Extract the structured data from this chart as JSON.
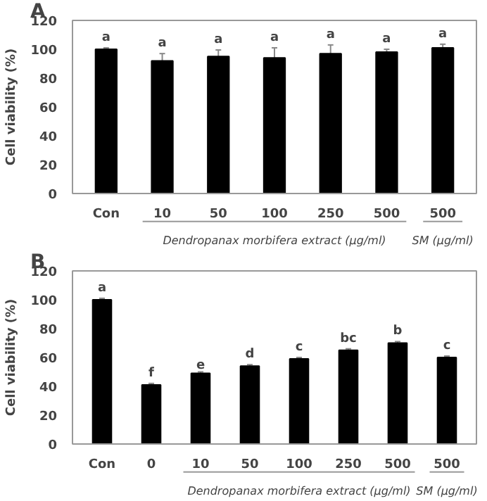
{
  "chart_data": [
    {
      "type": "bar",
      "title": "A",
      "ylabel": "Cell viability (%)",
      "categories": [
        "Con",
        "10",
        "50",
        "100",
        "250",
        "500",
        "500"
      ],
      "values": [
        100,
        92,
        95,
        94,
        97,
        98,
        101
      ],
      "errors": [
        1,
        5,
        4.5,
        7,
        6,
        2,
        2.5
      ],
      "value_labels": [
        "a",
        "a",
        "a",
        "a",
        "a",
        "a",
        "a"
      ],
      "color": "#000000",
      "ylim": [
        0,
        120
      ],
      "yticks": [
        0,
        20,
        40,
        60,
        80,
        100,
        120
      ],
      "annotations": [
        "Dendropanax morbifera extract (μg/ml)",
        "SM (μg/ml)"
      ]
    },
    {
      "type": "bar",
      "title": "B",
      "ylabel": "Cell viability (%)",
      "categories": [
        "Con",
        "0",
        "10",
        "50",
        "100",
        "250",
        "500",
        "500"
      ],
      "values": [
        100,
        41,
        49,
        54,
        59,
        65,
        70,
        60
      ],
      "errors": [
        1,
        1,
        1,
        1,
        1,
        1,
        1,
        1
      ],
      "value_labels": [
        "a",
        "f",
        "e",
        "d",
        "c",
        "bc",
        "b",
        "c"
      ],
      "color": "#000000",
      "ylim": [
        0,
        120
      ],
      "yticks": [
        0,
        20,
        40,
        60,
        80,
        100,
        120
      ],
      "annotations": [
        "Dendropanax morbifera extract (μg/ml)",
        "SM (μg/ml)"
      ]
    }
  ]
}
